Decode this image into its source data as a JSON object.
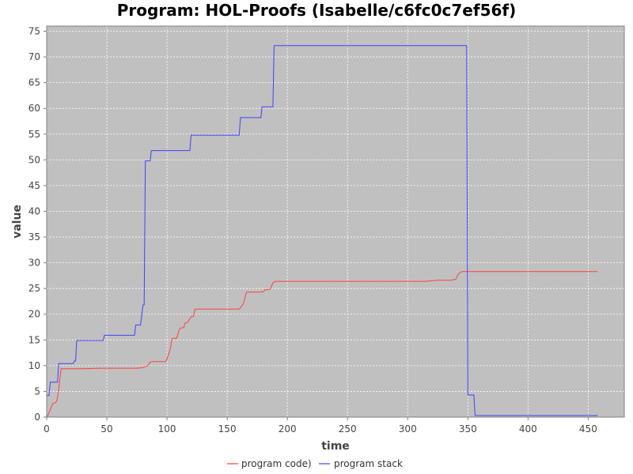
{
  "chart_data": {
    "type": "line",
    "title": "Program: HOL-Proofs (Isabelle/c6fc0c7ef56f)",
    "xlabel": "time",
    "ylabel": "value",
    "xlim": [
      0,
      480
    ],
    "ylim": [
      0,
      76
    ],
    "xticks": [
      0,
      50,
      100,
      150,
      200,
      250,
      300,
      350,
      400,
      450
    ],
    "yticks": [
      0,
      5,
      10,
      15,
      20,
      25,
      30,
      35,
      40,
      45,
      50,
      55,
      60,
      65,
      70,
      75
    ],
    "grid": true,
    "legend_position": "bottom-center",
    "plot_background": "#c0c0c0",
    "series": [
      {
        "name": "program code)",
        "color": "#ff4040",
        "x": [
          0,
          1,
          3,
          5,
          7,
          8,
          9,
          10,
          11,
          12,
          14,
          20,
          30,
          45,
          60,
          75,
          79,
          82,
          84,
          86,
          88,
          95,
          99,
          101,
          103,
          104,
          105,
          108,
          110,
          111,
          114,
          115,
          117,
          120,
          122,
          123,
          125,
          130,
          140,
          150,
          160,
          162,
          164,
          165,
          166,
          170,
          178,
          180,
          182,
          185,
          186,
          188,
          190,
          200,
          250,
          300,
          315,
          320,
          325,
          330,
          335,
          338,
          340,
          342,
          345,
          360,
          400,
          458
        ],
        "y": [
          0,
          0.3,
          1.5,
          2.6,
          2.8,
          3.0,
          3.8,
          5.4,
          7.5,
          9.4,
          9.4,
          9.4,
          9.4,
          9.5,
          9.5,
          9.5,
          9.6,
          9.8,
          10.0,
          10.7,
          10.8,
          10.8,
          10.8,
          12.0,
          13.5,
          15.2,
          15.3,
          15.3,
          16.9,
          17.3,
          17.4,
          18.3,
          18.4,
          19.5,
          19.6,
          20.9,
          21.0,
          21.0,
          21.0,
          21.0,
          21.0,
          21.5,
          22.4,
          23.4,
          24.3,
          24.3,
          24.3,
          24.4,
          24.8,
          24.8,
          25.0,
          26.1,
          26.4,
          26.4,
          26.4,
          26.4,
          26.4,
          26.5,
          26.6,
          26.6,
          26.6,
          26.7,
          26.8,
          27.8,
          28.3,
          28.3,
          28.3,
          28.3
        ]
      },
      {
        "name": "program stack",
        "color": "#4040ff",
        "x": [
          0,
          1,
          2,
          3,
          9,
          10,
          22,
          23,
          24,
          25,
          47,
          48,
          73,
          74,
          78,
          79,
          80,
          81,
          82,
          83,
          86,
          87,
          119,
          120,
          160,
          161,
          178,
          179,
          188,
          189,
          349,
          350,
          351,
          355,
          356,
          458
        ],
        "y": [
          4.2,
          4.2,
          4.2,
          6.8,
          6.8,
          10.4,
          10.4,
          10.9,
          10.9,
          14.9,
          14.9,
          15.9,
          15.9,
          17.9,
          17.9,
          19.7,
          21.8,
          21.8,
          49.8,
          49.8,
          49.8,
          51.8,
          51.8,
          54.8,
          54.8,
          58.2,
          58.2,
          60.3,
          60.3,
          72.2,
          72.2,
          4.3,
          4.3,
          4.3,
          0.3,
          0.3
        ]
      }
    ]
  }
}
